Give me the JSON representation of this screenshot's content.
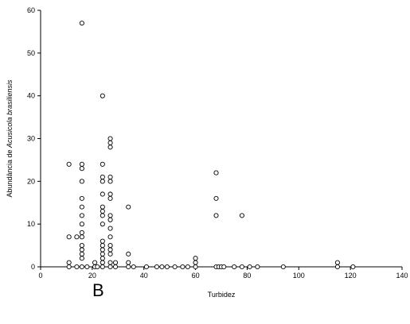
{
  "panel_letter": "B",
  "chart_data": {
    "type": "scatter",
    "title": "",
    "xlabel": "Turbidez",
    "ylabel_prefix": "Abundância de ",
    "ylabel_italic": "Acusicola brasiliensis",
    "xlim": [
      0,
      140
    ],
    "ylim": [
      0,
      60
    ],
    "x_ticks": [
      0,
      20,
      40,
      60,
      80,
      100,
      120,
      140
    ],
    "y_ticks": [
      0,
      10,
      20,
      30,
      40,
      50,
      60
    ],
    "marker": "open-circle",
    "grid": false,
    "series": [
      {
        "points": [
          [
            11,
            0
          ],
          [
            11,
            1
          ],
          [
            11,
            7
          ],
          [
            11,
            24
          ],
          [
            14,
            0
          ],
          [
            14,
            7
          ],
          [
            16,
            0
          ],
          [
            16,
            2
          ],
          [
            16,
            3
          ],
          [
            16,
            4
          ],
          [
            16,
            5
          ],
          [
            16,
            7
          ],
          [
            16,
            8
          ],
          [
            16,
            10
          ],
          [
            16,
            12
          ],
          [
            16,
            14
          ],
          [
            16,
            16
          ],
          [
            16,
            20
          ],
          [
            16,
            23
          ],
          [
            16,
            24
          ],
          [
            16,
            57
          ],
          [
            18,
            0
          ],
          [
            21,
            0
          ],
          [
            21,
            1
          ],
          [
            22,
            0
          ],
          [
            24,
            0
          ],
          [
            24,
            1
          ],
          [
            24,
            2
          ],
          [
            24,
            3
          ],
          [
            24,
            4
          ],
          [
            24,
            5
          ],
          [
            24,
            6
          ],
          [
            24,
            10
          ],
          [
            24,
            12
          ],
          [
            24,
            13
          ],
          [
            24,
            14
          ],
          [
            24,
            17
          ],
          [
            24,
            20
          ],
          [
            24,
            21
          ],
          [
            24,
            24
          ],
          [
            24,
            40
          ],
          [
            27,
            0
          ],
          [
            27,
            1
          ],
          [
            27,
            3
          ],
          [
            27,
            4
          ],
          [
            27,
            5
          ],
          [
            27,
            7
          ],
          [
            27,
            9
          ],
          [
            27,
            11
          ],
          [
            27,
            12
          ],
          [
            27,
            16
          ],
          [
            27,
            17
          ],
          [
            27,
            20
          ],
          [
            27,
            21
          ],
          [
            27,
            28
          ],
          [
            27,
            29
          ],
          [
            27,
            30
          ],
          [
            29,
            0
          ],
          [
            29,
            1
          ],
          [
            34,
            0
          ],
          [
            34,
            1
          ],
          [
            34,
            3
          ],
          [
            34,
            14
          ],
          [
            36,
            0
          ],
          [
            41,
            0
          ],
          [
            45,
            0
          ],
          [
            47,
            0
          ],
          [
            49,
            0
          ],
          [
            52,
            0
          ],
          [
            55,
            0
          ],
          [
            57,
            0
          ],
          [
            60,
            0
          ],
          [
            60,
            1
          ],
          [
            60,
            2
          ],
          [
            68,
            0
          ],
          [
            68,
            12
          ],
          [
            68,
            16
          ],
          [
            68,
            22
          ],
          [
            69,
            0
          ],
          [
            70,
            0
          ],
          [
            71,
            0
          ],
          [
            75,
            0
          ],
          [
            78,
            0
          ],
          [
            78,
            12
          ],
          [
            81,
            0
          ],
          [
            84,
            0
          ],
          [
            94,
            0
          ],
          [
            115,
            0
          ],
          [
            115,
            1
          ],
          [
            121,
            0
          ]
        ]
      }
    ]
  }
}
